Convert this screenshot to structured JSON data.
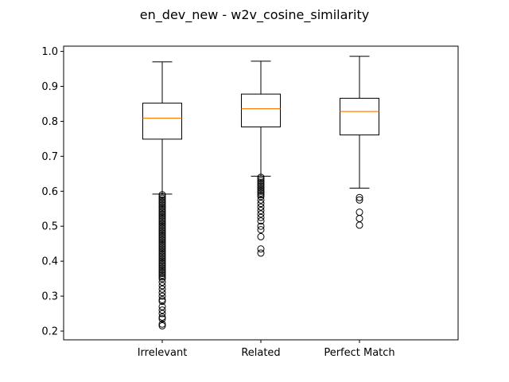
{
  "chart_data": {
    "type": "box",
    "title": "en_dev_new - w2v_cosine_similarity",
    "xlabel": "",
    "ylabel": "",
    "ylim": [
      0.175,
      1.015
    ],
    "yticks": [
      "0.2",
      "0.3",
      "0.4",
      "0.5",
      "0.6",
      "0.7",
      "0.8",
      "0.9",
      "1.0"
    ],
    "grid": false,
    "colors": {
      "median": "#ff7f0e",
      "box": "#000000"
    },
    "categories": [
      "Irrelevant",
      "Related",
      "Perfect Match"
    ],
    "boxes": [
      {
        "label": "Irrelevant",
        "whisker_low": 0.592,
        "q1": 0.749,
        "median": 0.809,
        "q3": 0.852,
        "whisker_high": 0.97,
        "outliers": [
          0.59,
          0.585,
          0.58,
          0.575,
          0.57,
          0.565,
          0.56,
          0.555,
          0.55,
          0.545,
          0.54,
          0.535,
          0.53,
          0.525,
          0.52,
          0.515,
          0.51,
          0.505,
          0.5,
          0.495,
          0.49,
          0.485,
          0.48,
          0.475,
          0.47,
          0.465,
          0.46,
          0.455,
          0.45,
          0.445,
          0.44,
          0.435,
          0.43,
          0.425,
          0.42,
          0.415,
          0.41,
          0.405,
          0.4,
          0.395,
          0.39,
          0.385,
          0.38,
          0.375,
          0.37,
          0.365,
          0.36,
          0.355,
          0.35,
          0.34,
          0.33,
          0.32,
          0.31,
          0.3,
          0.29,
          0.285,
          0.27,
          0.26,
          0.25,
          0.24,
          0.235,
          0.22,
          0.215
        ]
      },
      {
        "label": "Related",
        "whisker_low": 0.643,
        "q1": 0.784,
        "median": 0.836,
        "q3": 0.878,
        "whisker_high": 0.972,
        "outliers": [
          0.64,
          0.635,
          0.63,
          0.625,
          0.62,
          0.615,
          0.61,
          0.605,
          0.6,
          0.595,
          0.59,
          0.585,
          0.575,
          0.565,
          0.555,
          0.545,
          0.535,
          0.525,
          0.515,
          0.5,
          0.49,
          0.47,
          0.435,
          0.423
        ]
      },
      {
        "label": "Perfect Match",
        "whisker_low": 0.609,
        "q1": 0.761,
        "median": 0.828,
        "q3": 0.866,
        "whisker_high": 0.986,
        "outliers": [
          0.582,
          0.575,
          0.54,
          0.522,
          0.503
        ]
      }
    ]
  }
}
